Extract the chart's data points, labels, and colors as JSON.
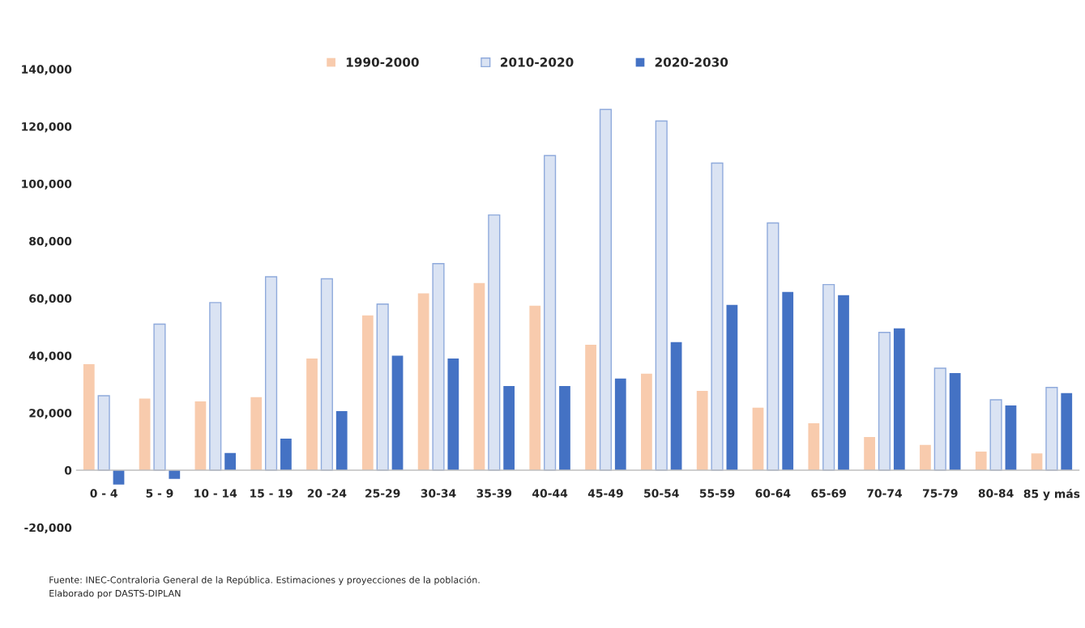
{
  "chart_data": {
    "type": "bar",
    "categories": [
      "0 - 4",
      "5 - 9",
      "10 - 14",
      "15 - 19",
      "20 -24",
      "25-29",
      "30-34",
      "35-39",
      "40-44",
      "45-49",
      "50-54",
      "55-59",
      "60-64",
      "65-69",
      "70-74",
      "75-79",
      "80-84",
      "85 y más"
    ],
    "series": [
      {
        "name": "1990-2000",
        "color": "#f8cbad",
        "values": [
          37000,
          25000,
          24000,
          25500,
          39000,
          54000,
          61700,
          65300,
          57400,
          43800,
          33700,
          27700,
          21800,
          16400,
          11600,
          8800,
          6500,
          5900
        ]
      },
      {
        "name": "2010-2020",
        "color": "#dae3f3",
        "values": [
          26000,
          51000,
          58500,
          67500,
          66800,
          58000,
          72100,
          89100,
          109800,
          125900,
          121900,
          107200,
          86300,
          64800,
          48100,
          35600,
          24600,
          28900
        ]
      },
      {
        "name": "2020-2030",
        "color": "#4472c4",
        "values": [
          -5000,
          -3000,
          6000,
          11000,
          20600,
          40000,
          39000,
          29400,
          29400,
          32000,
          44700,
          57700,
          62200,
          61100,
          49500,
          33900,
          22600,
          26900
        ]
      }
    ],
    "ylim": [
      -20000,
      140000
    ],
    "yticks": [
      {
        "value": -20000,
        "label": "-20,000"
      },
      {
        "value": 0,
        "label": "0"
      },
      {
        "value": 20000,
        "label": "20,000"
      },
      {
        "value": 40000,
        "label": "40,000"
      },
      {
        "value": 60000,
        "label": "60,000"
      },
      {
        "value": 80000,
        "label": "80,000"
      },
      {
        "value": 100000,
        "label": "100,000"
      },
      {
        "value": 120000,
        "label": "120,000"
      },
      {
        "value": 140000,
        "label": "140,000"
      }
    ],
    "grid": false,
    "legend": "top",
    "annotations": [
      "Fuente: INEC-Contraloria General de la República. Estimaciones y proyecciones de la población.\nElaborado por DASTS-DIPLAN"
    ]
  }
}
